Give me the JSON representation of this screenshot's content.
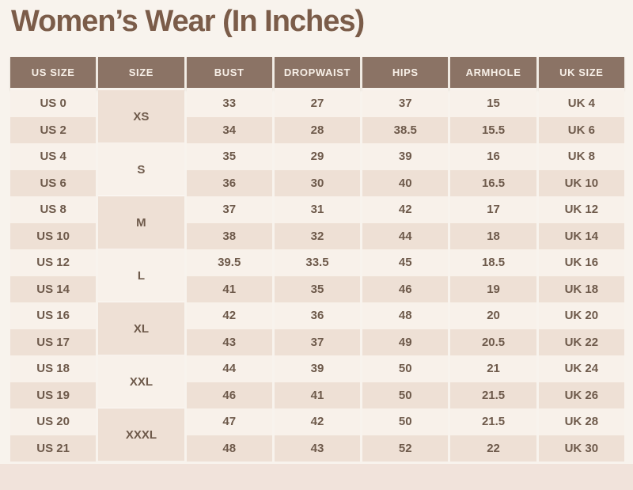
{
  "chart_data": {
    "type": "table",
    "title": "Women’s Wear (In Inches)",
    "columns": [
      "US SIZE",
      "SIZE",
      "BUST",
      "DROPWAIST",
      "HIPS",
      "ARMHOLE",
      "UK SIZE"
    ],
    "rows": [
      [
        "US 0",
        "XS",
        "33",
        "27",
        "37",
        "15",
        "UK 4"
      ],
      [
        "US 2",
        "XS",
        "34",
        "28",
        "38.5",
        "15.5",
        "UK 6"
      ],
      [
        "US 4",
        "S",
        "35",
        "29",
        "39",
        "16",
        "UK 8"
      ],
      [
        "US 6",
        "S",
        "36",
        "30",
        "40",
        "16.5",
        "UK 10"
      ],
      [
        "US 8",
        "M",
        "37",
        "31",
        "42",
        "17",
        "UK 12"
      ],
      [
        "US 10",
        "M",
        "38",
        "32",
        "44",
        "18",
        "UK 14"
      ],
      [
        "US 12",
        "L",
        "39.5",
        "33.5",
        "45",
        "18.5",
        "UK 16"
      ],
      [
        "US 14",
        "L",
        "41",
        "35",
        "46",
        "19",
        "UK 18"
      ],
      [
        "US 16",
        "XL",
        "42",
        "36",
        "48",
        "20",
        "UK 20"
      ],
      [
        "US 17",
        "XL",
        "43",
        "37",
        "49",
        "20.5",
        "UK 22"
      ],
      [
        "US 18",
        "XXL",
        "44",
        "39",
        "50",
        "21",
        "UK 24"
      ],
      [
        "US 19",
        "XXL",
        "46",
        "41",
        "50",
        "21.5",
        "UK 26"
      ],
      [
        "US 20",
        "XXXL",
        "47",
        "42",
        "50",
        "21.5",
        "UK 28"
      ],
      [
        "US 21",
        "XXXL",
        "48",
        "43",
        "52",
        "22",
        "UK 30"
      ]
    ],
    "layout": {
      "merged_column": "SIZE",
      "rows_per_size_group": 2,
      "row_striping": true,
      "legend": false
    }
  },
  "colors": {
    "page-bg": "#f8f3ed",
    "title-text": "#7b5c49",
    "header-bg": "#8b7365",
    "header-text": "#f8f0e8",
    "row-light": "#f8f1ea",
    "row-dark": "#eee0d5",
    "cell-text": "#6e5a4b",
    "bottom-band": "#f1e3db"
  }
}
